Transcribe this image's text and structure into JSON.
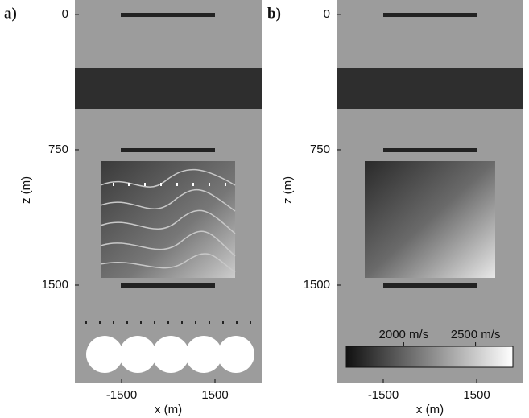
{
  "chart_data": [
    {
      "type": "image",
      "panel_label": "a)",
      "xlabel": "x (m)",
      "ylabel": "z (m)",
      "xlim": [
        -3000,
        3000
      ],
      "ylim": [
        -80,
        2040
      ],
      "xticks": [
        -1500,
        1500
      ],
      "yticks": [
        0,
        750,
        1500
      ]
    },
    {
      "type": "image",
      "panel_label": "b)",
      "xlabel": "x (m)",
      "ylabel": "z (m)",
      "xlim": [
        -3000,
        3000
      ],
      "ylim": [
        -80,
        2040
      ],
      "xticks": [
        -1500,
        1500
      ],
      "yticks": [
        0,
        750,
        1500
      ],
      "colorbar": {
        "clim": [
          1600,
          2760
        ],
        "ticks": [
          {
            "value": 2000,
            "label": "2000 m/s"
          },
          {
            "value": 2500,
            "label": "2500 m/s"
          }
        ]
      }
    }
  ]
}
